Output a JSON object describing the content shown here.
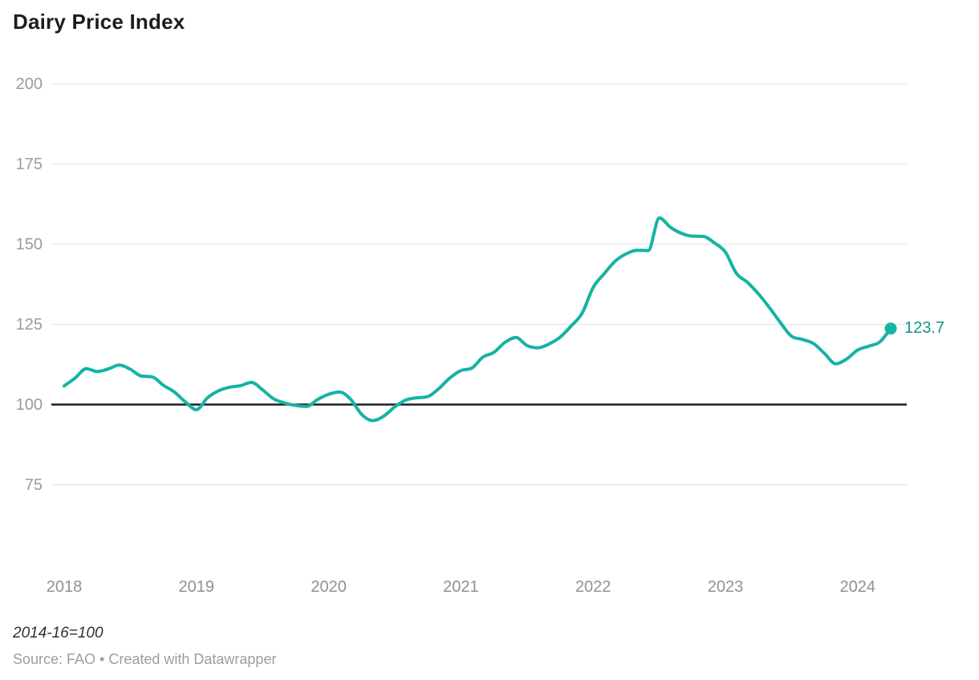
{
  "header": {
    "title": "Dairy Price Index"
  },
  "footer": {
    "note": "2014-16=100",
    "source": "Source: FAO • Created with Datawrapper"
  },
  "chart_data": {
    "type": "line",
    "title": "Dairy Price Index",
    "unit_note": "2014-16=100",
    "source": "Source: FAO • Created with Datawrapper",
    "frequency": "monthly",
    "x_start": "2018-01",
    "x_end": "2024-04",
    "xticks": [
      "2018",
      "2019",
      "2020",
      "2021",
      "2022",
      "2023",
      "2024"
    ],
    "yticks": [
      75,
      100,
      125,
      150,
      175,
      200
    ],
    "ylim": [
      75,
      200
    ],
    "baseline": 100,
    "grid": "horizontal",
    "legend": "none",
    "end_label": "123.7",
    "end_value": 123.7,
    "colors": {
      "line": "#16b3a2",
      "end_dot": "#16b3a2",
      "end_label": "#0e968a",
      "grid": "#e7e7e7",
      "baseline": "#1f1f1f",
      "title": "#1d1d1d",
      "tick_text": "#9b9b9b"
    },
    "series": [
      {
        "name": "Dairy Price Index",
        "values": [
          105.8,
          108.3,
          111.2,
          110.3,
          111.1,
          112.3,
          111.0,
          108.9,
          108.6,
          106.0,
          103.9,
          100.8,
          98.4,
          102.1,
          104.3,
          105.4,
          105.9,
          106.9,
          104.6,
          101.8,
          100.5,
          99.7,
          99.4,
          101.6,
          103.2,
          103.9,
          101.6,
          96.9,
          95.0,
          96.4,
          99.3,
          101.4,
          102.1,
          102.5,
          105.0,
          108.3,
          110.6,
          111.4,
          114.8,
          116.3,
          119.4,
          120.9,
          118.4,
          117.7,
          118.9,
          121.0,
          124.5,
          128.5,
          136.5,
          140.8,
          144.7,
          147.0,
          148.1,
          148.0,
          158.2,
          155.3,
          153.4,
          152.5,
          152.4,
          150.4,
          147.5,
          140.9,
          138.1,
          134.5,
          130.2,
          125.5,
          121.3,
          120.3,
          119.0,
          115.9,
          112.7,
          114.2,
          117.0,
          118.2,
          119.5,
          123.7
        ]
      }
    ]
  }
}
